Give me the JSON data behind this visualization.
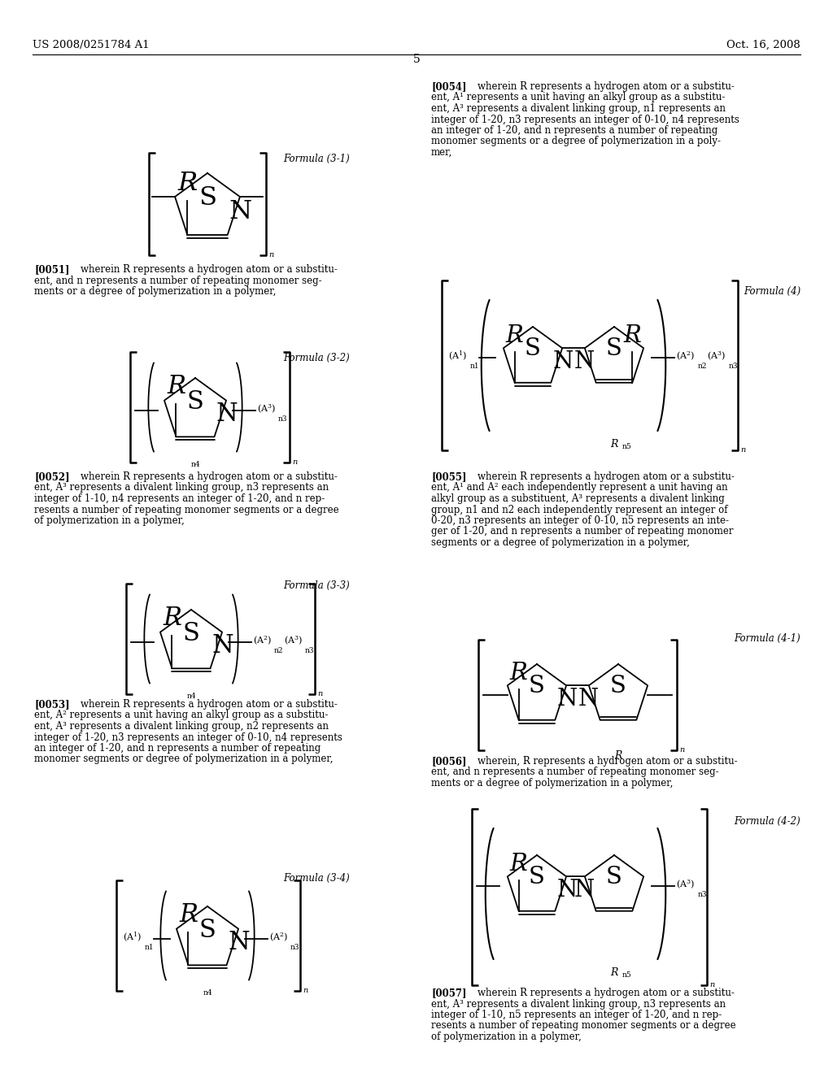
{
  "bg_color": "#ffffff",
  "header_left": "US 2008/0251784 A1",
  "header_right": "Oct. 16, 2008",
  "page_number": "5"
}
